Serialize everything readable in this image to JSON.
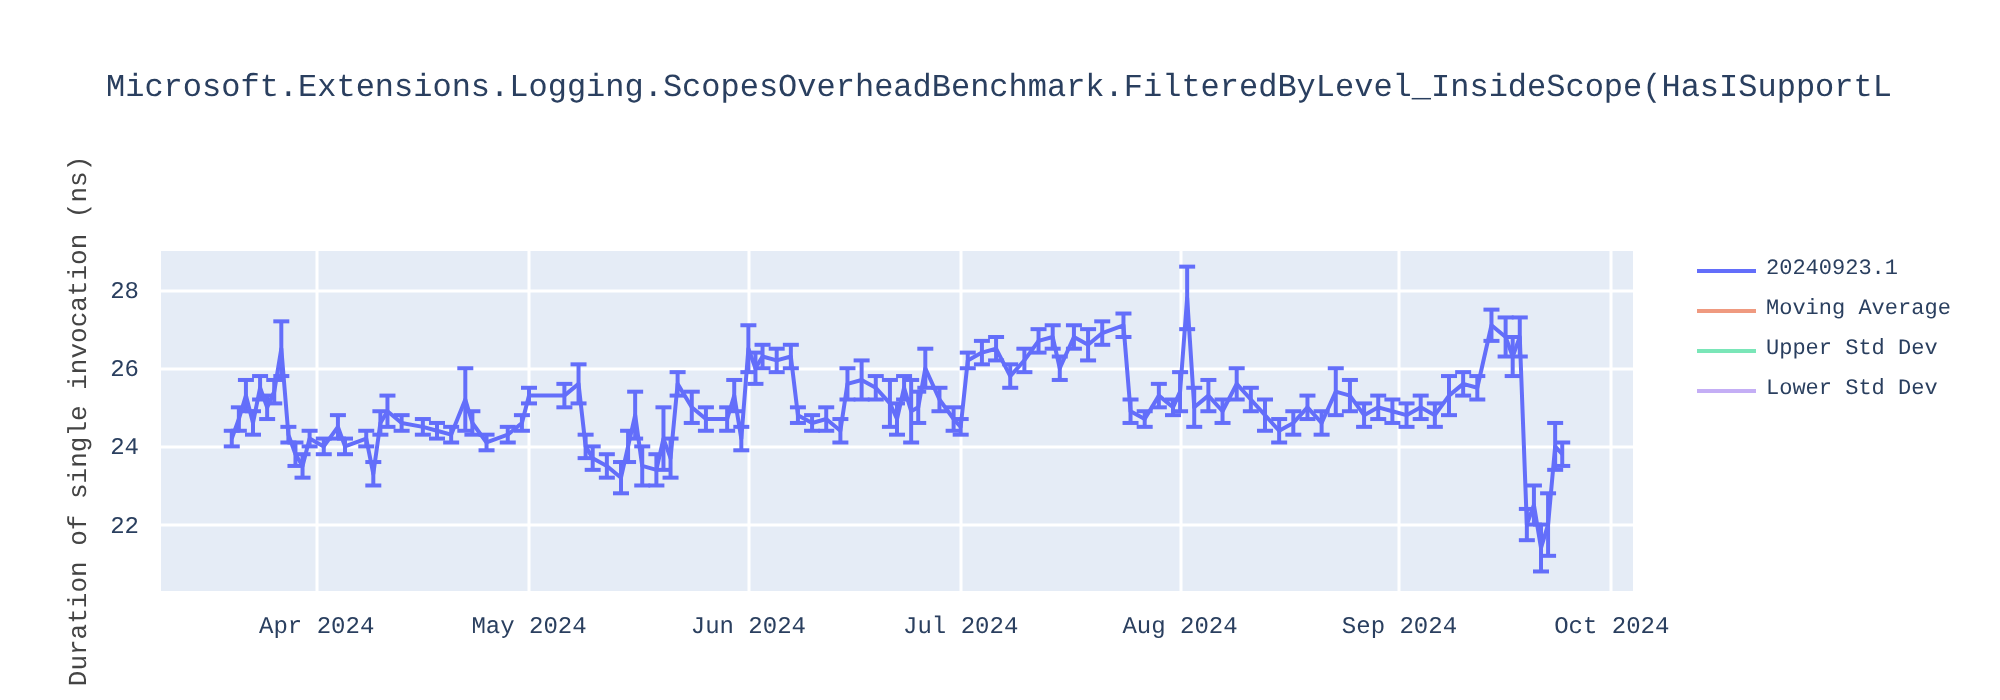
{
  "chart_data": {
    "type": "line",
    "title": "Microsoft.Extensions.Logging.ScopesOverheadBenchmark.FilteredByLevel_InsideScope(HasISupportL",
    "ylabel": "Duration of single invocation (ns)",
    "x": [
      "2024-03-20",
      "2024-03-21",
      "2024-03-22",
      "2024-03-23",
      "2024-03-24",
      "2024-03-25",
      "2024-03-26",
      "2024-03-27",
      "2024-03-28",
      "2024-03-29",
      "2024-03-30",
      "2024-03-31",
      "2024-04-02",
      "2024-04-04",
      "2024-04-05",
      "2024-04-08",
      "2024-04-09",
      "2024-04-10",
      "2024-04-11",
      "2024-04-13",
      "2024-04-16",
      "2024-04-18",
      "2024-04-20",
      "2024-04-22",
      "2024-04-23",
      "2024-04-25",
      "2024-04-28",
      "2024-04-30",
      "2024-05-01",
      "2024-05-06",
      "2024-05-08",
      "2024-05-09",
      "2024-05-10",
      "2024-05-12",
      "2024-05-14",
      "2024-05-15",
      "2024-05-16",
      "2024-05-17",
      "2024-05-19",
      "2024-05-20",
      "2024-05-21",
      "2024-05-22",
      "2024-05-24",
      "2024-05-26",
      "2024-05-29",
      "2024-05-30",
      "2024-05-31",
      "2024-06-01",
      "2024-06-02",
      "2024-06-03",
      "2024-06-05",
      "2024-06-07",
      "2024-06-08",
      "2024-06-10",
      "2024-06-12",
      "2024-06-14",
      "2024-06-15",
      "2024-06-17",
      "2024-06-19",
      "2024-06-21",
      "2024-06-22",
      "2024-06-23",
      "2024-06-24",
      "2024-06-25",
      "2024-06-26",
      "2024-06-28",
      "2024-06-30",
      "2024-07-01",
      "2024-07-02",
      "2024-07-04",
      "2024-07-06",
      "2024-07-08",
      "2024-07-10",
      "2024-07-12",
      "2024-07-14",
      "2024-07-15",
      "2024-07-17",
      "2024-07-19",
      "2024-07-21",
      "2024-07-24",
      "2024-07-25",
      "2024-07-27",
      "2024-07-29",
      "2024-07-31",
      "2024-08-01",
      "2024-08-02",
      "2024-08-03",
      "2024-08-05",
      "2024-08-07",
      "2024-08-09",
      "2024-08-11",
      "2024-08-13",
      "2024-08-15",
      "2024-08-17",
      "2024-08-19",
      "2024-08-21",
      "2024-08-23",
      "2024-08-25",
      "2024-08-27",
      "2024-08-29",
      "2024-08-31",
      "2024-09-02",
      "2024-09-04",
      "2024-09-06",
      "2024-09-08",
      "2024-09-10",
      "2024-09-12",
      "2024-09-14",
      "2024-09-16",
      "2024-09-17",
      "2024-09-18",
      "2024-09-19",
      "2024-09-20",
      "2024-09-21",
      "2024-09-22",
      "2024-09-23",
      "2024-09-24"
    ],
    "series": [
      {
        "name": "20240923.1",
        "color": "#636efa",
        "values": [
          24.2,
          24.7,
          25.3,
          24.6,
          25.5,
          25.0,
          25.4,
          26.5,
          24.3,
          23.8,
          23.5,
          24.2,
          24.0,
          24.5,
          24.0,
          24.2,
          23.3,
          24.6,
          24.9,
          24.6,
          24.5,
          24.4,
          24.3,
          25.2,
          24.6,
          24.1,
          24.3,
          24.6,
          25.3,
          25.3,
          25.6,
          24.0,
          23.7,
          23.5,
          23.2,
          24.0,
          24.8,
          23.5,
          23.4,
          24.2,
          23.7,
          25.6,
          25.0,
          24.7,
          24.7,
          25.3,
          24.2,
          26.5,
          26.0,
          26.3,
          26.2,
          26.3,
          24.8,
          24.6,
          24.7,
          24.4,
          25.6,
          25.7,
          25.5,
          25.1,
          24.7,
          25.5,
          24.9,
          25.0,
          26.0,
          25.2,
          24.7,
          24.5,
          26.2,
          26.4,
          26.5,
          25.8,
          26.2,
          26.7,
          26.8,
          26.0,
          26.8,
          26.6,
          26.9,
          27.1,
          24.9,
          24.7,
          25.3,
          25.0,
          25.4,
          27.8,
          25.0,
          25.3,
          24.9,
          25.6,
          25.2,
          24.8,
          24.4,
          24.6,
          25.0,
          24.6,
          25.4,
          25.3,
          24.8,
          25.0,
          24.9,
          24.8,
          25.0,
          24.8,
          25.3,
          25.6,
          25.5,
          27.1,
          26.8,
          26.3,
          26.8,
          22.0,
          22.5,
          21.4,
          22.0,
          24.0,
          23.8
        ],
        "errors": [
          0.2,
          0.3,
          0.4,
          0.3,
          0.3,
          0.3,
          0.3,
          0.7,
          0.2,
          0.3,
          0.3,
          0.2,
          0.2,
          0.3,
          0.2,
          0.2,
          0.3,
          0.3,
          0.4,
          0.2,
          0.2,
          0.2,
          0.2,
          0.8,
          0.3,
          0.2,
          0.2,
          0.2,
          0.2,
          0.3,
          0.5,
          0.3,
          0.3,
          0.3,
          0.4,
          0.4,
          0.6,
          0.5,
          0.4,
          0.8,
          0.5,
          0.3,
          0.4,
          0.3,
          0.3,
          0.4,
          0.3,
          0.6,
          0.4,
          0.3,
          0.3,
          0.3,
          0.2,
          0.2,
          0.3,
          0.3,
          0.4,
          0.5,
          0.3,
          0.6,
          0.4,
          0.3,
          0.8,
          0.4,
          0.5,
          0.3,
          0.3,
          0.2,
          0.2,
          0.3,
          0.3,
          0.3,
          0.3,
          0.3,
          0.3,
          0.3,
          0.3,
          0.4,
          0.3,
          0.3,
          0.3,
          0.2,
          0.3,
          0.2,
          0.5,
          0.8,
          0.5,
          0.4,
          0.3,
          0.4,
          0.3,
          0.4,
          0.3,
          0.3,
          0.3,
          0.3,
          0.6,
          0.4,
          0.3,
          0.3,
          0.3,
          0.3,
          0.3,
          0.3,
          0.5,
          0.3,
          0.3,
          0.4,
          0.5,
          0.5,
          0.5,
          0.4,
          0.5,
          0.6,
          0.8,
          0.6,
          0.3
        ]
      },
      {
        "name": "Moving Average",
        "color": "#ef9a80",
        "values": [
          null,
          null,
          null,
          null,
          null,
          null,
          null,
          null,
          null,
          null,
          null,
          null,
          null,
          null,
          null,
          null,
          null,
          null,
          null,
          null,
          null,
          null,
          null,
          null,
          null,
          null,
          null,
          null,
          null,
          null,
          null,
          null,
          null,
          null,
          null,
          null,
          null,
          null,
          null,
          null,
          null,
          null,
          null,
          null,
          null,
          null,
          null,
          null,
          null,
          null,
          null,
          null,
          null,
          null,
          null,
          null,
          null,
          null,
          null,
          null,
          null,
          null,
          null,
          null,
          null,
          null,
          null,
          null,
          null,
          null,
          null,
          null,
          null,
          null,
          null,
          null,
          null,
          null,
          null,
          null,
          null,
          null,
          null,
          null,
          null,
          null,
          null,
          null,
          null,
          null,
          null,
          null,
          null,
          null,
          null,
          null,
          null,
          null,
          null,
          null,
          null,
          null,
          null,
          null,
          null,
          null,
          null,
          null,
          null,
          null,
          null,
          null,
          null,
          null,
          null,
          null,
          null
        ]
      },
      {
        "name": "Upper Std Dev",
        "color": "#7ae6b8",
        "values": [
          null,
          null,
          null,
          null,
          null,
          null,
          null,
          null,
          null,
          null,
          null,
          null,
          null,
          null,
          null,
          null,
          null,
          null,
          null,
          null,
          null,
          null,
          null,
          null,
          null,
          null,
          null,
          null,
          null,
          null,
          null,
          null,
          null,
          null,
          null,
          null,
          null,
          null,
          null,
          null,
          null,
          null,
          null,
          null,
          null,
          null,
          null,
          null,
          null,
          null,
          null,
          null,
          null,
          null,
          null,
          null,
          null,
          null,
          null,
          null,
          null,
          null,
          null,
          null,
          null,
          null,
          null,
          null,
          null,
          null,
          null,
          null,
          null,
          null,
          null,
          null,
          null,
          null,
          null,
          null,
          null,
          null,
          null,
          null,
          null,
          null,
          null,
          null,
          null,
          null,
          null,
          null,
          null,
          null,
          null,
          null,
          null,
          null,
          null,
          null,
          null,
          null,
          null,
          null,
          null,
          null,
          null,
          null,
          null,
          null,
          null,
          null,
          null,
          null,
          null,
          null,
          null
        ]
      },
      {
        "name": "Lower Std Dev",
        "color": "#c4aef5",
        "values": [
          null,
          null,
          null,
          null,
          null,
          null,
          null,
          null,
          null,
          null,
          null,
          null,
          null,
          null,
          null,
          null,
          null,
          null,
          null,
          null,
          null,
          null,
          null,
          null,
          null,
          null,
          null,
          null,
          null,
          null,
          null,
          null,
          null,
          null,
          null,
          null,
          null,
          null,
          null,
          null,
          null,
          null,
          null,
          null,
          null,
          null,
          null,
          null,
          null,
          null,
          null,
          null,
          null,
          null,
          null,
          null,
          null,
          null,
          null,
          null,
          null,
          null,
          null,
          null,
          null,
          null,
          null,
          null,
          null,
          null,
          null,
          null,
          null,
          null,
          null,
          null,
          null,
          null,
          null,
          null,
          null,
          null,
          null,
          null,
          null,
          null,
          null,
          null,
          null,
          null,
          null,
          null,
          null,
          null,
          null,
          null,
          null,
          null,
          null,
          null,
          null,
          null,
          null,
          null,
          null,
          null,
          null,
          null,
          null,
          null,
          null,
          null,
          null,
          null,
          null,
          null,
          null
        ]
      }
    ],
    "xlim": [
      "2024-03-10",
      "2024-10-04"
    ],
    "ylim": [
      20.3,
      29.0
    ],
    "xticks": [
      {
        "value": "2024-04-01",
        "label": "Apr 2024"
      },
      {
        "value": "2024-05-01",
        "label": "May 2024"
      },
      {
        "value": "2024-06-01",
        "label": "Jun 2024"
      },
      {
        "value": "2024-07-01",
        "label": "Jul 2024"
      },
      {
        "value": "2024-08-01",
        "label": "Aug 2024"
      },
      {
        "value": "2024-09-01",
        "label": "Sep 2024"
      },
      {
        "value": "2024-10-01",
        "label": "Oct 2024"
      }
    ],
    "yticks": [
      22,
      24,
      26,
      28
    ],
    "grid": true,
    "legend": "top right",
    "line_style": "solid"
  }
}
